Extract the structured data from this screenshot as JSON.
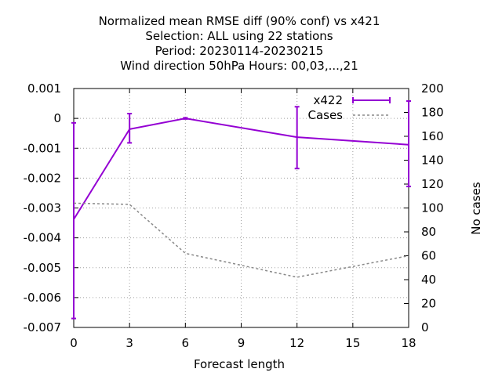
{
  "chart_data": {
    "type": "line",
    "title_lines": [
      "Normalized mean RMSE diff (90% conf) vs x421",
      "Selection: ALL using    22 stations",
      "Period: 20230114-20230215",
      "Wind direction 50hPa   Hours:  00,03,...,21"
    ],
    "xlabel": "Forecast length",
    "ylabel": "",
    "y2label": "No cases",
    "xlim": [
      0,
      18
    ],
    "ylim": [
      -0.007,
      0.001
    ],
    "y2lim": [
      0,
      200
    ],
    "xticks": [
      0,
      3,
      6,
      9,
      12,
      15,
      18
    ],
    "yticks": [
      0.001,
      0,
      -0.001,
      -0.002,
      -0.003,
      -0.004,
      -0.005,
      -0.006,
      -0.007
    ],
    "ytick_labels": [
      "0.001",
      "0",
      "-0.001",
      "-0.002",
      "-0.003",
      "-0.004",
      "-0.005",
      "-0.006",
      "-0.007"
    ],
    "y2ticks": [
      200,
      180,
      160,
      140,
      120,
      100,
      80,
      60,
      40,
      20,
      0
    ],
    "grid": true,
    "legend_position": "top-right",
    "series": [
      {
        "name": "x422",
        "axis": "y",
        "color": "#9400d3",
        "style": "line-errorbars",
        "x": [
          0,
          3,
          6,
          12,
          18
        ],
        "y": [
          -0.00338,
          -0.00036,
          0.0,
          -0.00063,
          -0.00088
        ],
        "err_low": [
          -0.0067,
          -0.00082,
          -2e-05,
          -0.00168,
          -0.00228
        ],
        "err_high": [
          -0.00015,
          0.00016,
          2e-05,
          0.00039,
          0.00058
        ]
      },
      {
        "name": "Cases",
        "axis": "y2",
        "color": "#888888",
        "style": "dashed",
        "x": [
          0,
          3,
          6,
          12,
          18
        ],
        "y": [
          104,
          103,
          62,
          42,
          60
        ]
      }
    ]
  }
}
